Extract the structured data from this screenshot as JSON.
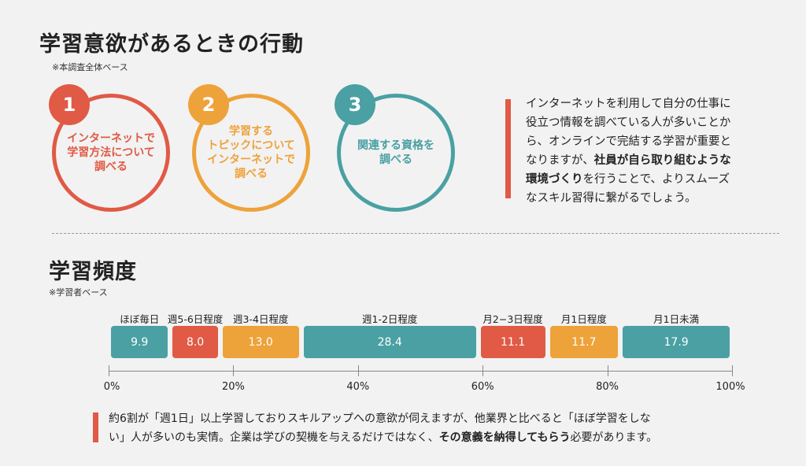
{
  "section1": {
    "title": "学習意欲があるときの行動",
    "note": "※本調査全体ベース",
    "items": [
      {
        "number": "1",
        "lines": [
          "インターネットで",
          "学習方法について",
          "調べる"
        ],
        "color": "#e05a45"
      },
      {
        "number": "2",
        "lines": [
          "学習する",
          "トピックについて",
          "インターネットで",
          "調べる"
        ],
        "color": "#eea23a"
      },
      {
        "number": "3",
        "lines": [
          "関連する資格を",
          "調べる"
        ],
        "color": "#4aa0a3"
      }
    ],
    "comment": {
      "lines": [
        "インターネットを利用して自分の仕事に",
        "役立つ情報を調べている人が多いことか",
        "ら、オンラインで完結する学習が重要と"
      ],
      "line4_pre": "なりますが、",
      "line4_bold": "社員が自ら取り組むような",
      "line5_bold": "環境づくり",
      "line5_post": "を行うことで、よりスムーズ",
      "line6": "なスキル習得に繋がるでしょう。"
    }
  },
  "section2": {
    "title": "学習頻度",
    "note": "※学習者ベース",
    "comment": {
      "line1": "約6割が「週1日」以上学習しておりスキルアップへの意欲が伺えますが、他業界と比べると「ほぼ学習をしな",
      "line2_pre": "い」人が多いのも実情。企業は学びの契機を与えるだけではなく、",
      "line2_bold": "その意義を納得してもらう",
      "line2_post": "必要があります。"
    }
  },
  "chart_data": {
    "type": "bar",
    "orientation": "horizontal-stacked",
    "unit": "%",
    "xlim": [
      0,
      100
    ],
    "ticks": [
      "0%",
      "20%",
      "40%",
      "60%",
      "80%",
      "100%"
    ],
    "categories": [
      "ほぼ毎日",
      "週5-6日程度",
      "週3-4日程度",
      "週1-2日程度",
      "月2−3日程度",
      "月1日程度",
      "月1日未満"
    ],
    "values": [
      9.9,
      8.0,
      13.0,
      28.4,
      11.1,
      11.7,
      17.9
    ],
    "labels": [
      "9.9",
      "8.0",
      "13.0",
      "28.4",
      "11.1",
      "11.7",
      "17.9"
    ],
    "colors": [
      "#4aa0a3",
      "#e05a45",
      "#eea23a",
      "#4aa0a3",
      "#e05a45",
      "#eea23a",
      "#4aa0a3"
    ]
  }
}
